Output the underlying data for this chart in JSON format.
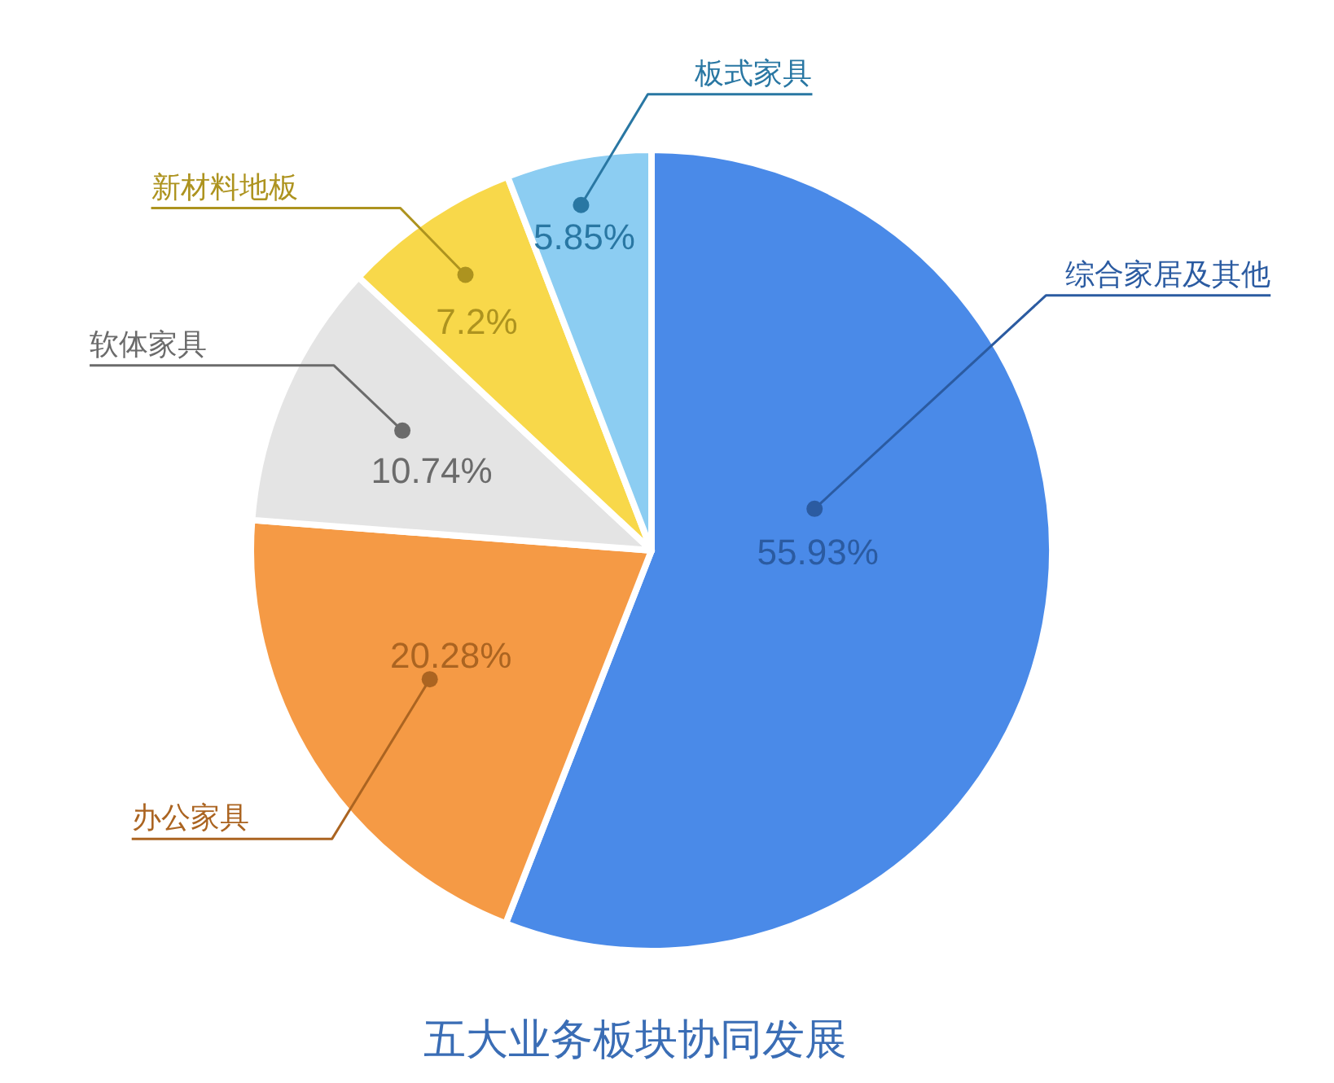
{
  "chart_data": {
    "type": "pie",
    "title": "五大业务板块协同发展",
    "categories": [
      "综合家居及其他",
      "办公家具",
      "软体家具",
      "新材料地板",
      "板式家具"
    ],
    "values": [
      55.93,
      20.28,
      10.74,
      7.2,
      5.85
    ],
    "value_labels": [
      "55.93%",
      "20.28%",
      "10.74%",
      "7.2%",
      "5.85%"
    ],
    "colors": [
      "#4a8ae8",
      "#f59a45",
      "#e4e4e4",
      "#f8d84a",
      "#8ccdf2"
    ]
  }
}
